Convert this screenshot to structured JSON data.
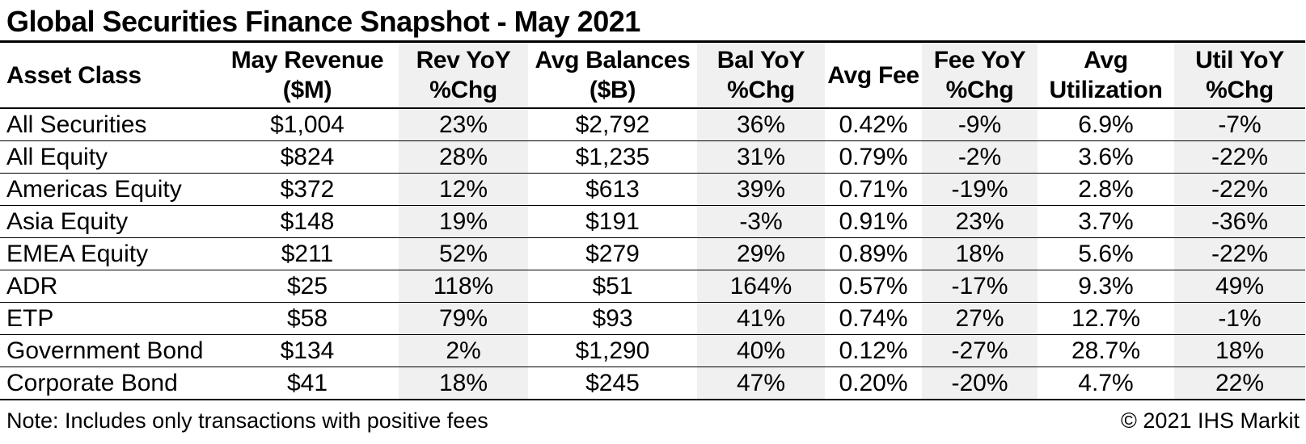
{
  "page_title": "Global Securities Finance Snapshot - May 2021",
  "footer": {
    "note": "Note: Includes only transactions with positive fees",
    "copyright": "© 2021 IHS Markit"
  },
  "colors": {
    "text": "#000000",
    "background": "#ffffff",
    "shaded_column": "#f0f0f0",
    "rule": "#000000"
  },
  "chart_data": {
    "type": "table",
    "title": "Global Securities Finance Snapshot - May 2021",
    "columns": [
      {
        "line1": "Asset Class",
        "line2": "",
        "shaded": false,
        "align": "left"
      },
      {
        "line1": "May Revenue",
        "line2": "($M)",
        "shaded": false,
        "align": "center"
      },
      {
        "line1": "Rev YoY",
        "line2": "%Chg",
        "shaded": true,
        "align": "center"
      },
      {
        "line1": "Avg Balances",
        "line2": "($B)",
        "shaded": false,
        "align": "center"
      },
      {
        "line1": "Bal YoY",
        "line2": "%Chg",
        "shaded": true,
        "align": "center"
      },
      {
        "line1": "Avg Fee",
        "line2": "",
        "shaded": false,
        "align": "center"
      },
      {
        "line1": "Fee YoY",
        "line2": "%Chg",
        "shaded": true,
        "align": "center"
      },
      {
        "line1": "Avg",
        "line2": "Utilization",
        "shaded": false,
        "align": "center"
      },
      {
        "line1": "Util YoY",
        "line2": "%Chg",
        "shaded": true,
        "align": "center"
      }
    ],
    "rows": [
      [
        "All Securities",
        "$1,004",
        "23%",
        "$2,792",
        "36%",
        "0.42%",
        "-9%",
        "6.9%",
        "-7%"
      ],
      [
        "All Equity",
        "$824",
        "28%",
        "$1,235",
        "31%",
        "0.79%",
        "-2%",
        "3.6%",
        "-22%"
      ],
      [
        "Americas Equity",
        "$372",
        "12%",
        "$613",
        "39%",
        "0.71%",
        "-19%",
        "2.8%",
        "-22%"
      ],
      [
        "Asia Equity",
        "$148",
        "19%",
        "$191",
        "-3%",
        "0.91%",
        "23%",
        "3.7%",
        "-36%"
      ],
      [
        "EMEA Equity",
        "$211",
        "52%",
        "$279",
        "29%",
        "0.89%",
        "18%",
        "5.6%",
        "-22%"
      ],
      [
        "ADR",
        "$25",
        "118%",
        "$51",
        "164%",
        "0.57%",
        "-17%",
        "9.3%",
        "49%"
      ],
      [
        "ETP",
        "$58",
        "79%",
        "$93",
        "41%",
        "0.74%",
        "27%",
        "12.7%",
        "-1%"
      ],
      [
        "Government Bond",
        "$134",
        "2%",
        "$1,290",
        "40%",
        "0.12%",
        "-27%",
        "28.7%",
        "18%"
      ],
      [
        "Corporate Bond",
        "$41",
        "18%",
        "$245",
        "47%",
        "0.20%",
        "-20%",
        "4.7%",
        "22%"
      ]
    ]
  }
}
